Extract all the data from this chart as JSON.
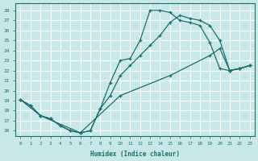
{
  "xlabel": "Humidex (Indice chaleur)",
  "bg_color": "#c8e8e8",
  "grid_color": "#aed4d4",
  "line_color": "#1a6e6e",
  "xlim": [
    -0.5,
    23.5
  ],
  "ylim": [
    15.5,
    28.7
  ],
  "xticks": [
    0,
    1,
    2,
    3,
    4,
    5,
    6,
    7,
    8,
    9,
    10,
    11,
    12,
    13,
    14,
    15,
    16,
    17,
    18,
    19,
    20,
    21,
    22,
    23
  ],
  "yticks": [
    16,
    17,
    18,
    19,
    20,
    21,
    22,
    23,
    24,
    25,
    26,
    27,
    28
  ],
  "curve1_x": [
    0,
    1,
    2,
    3,
    4,
    5,
    6,
    7,
    8,
    9,
    10,
    11,
    12,
    13,
    14,
    15,
    16,
    17,
    18,
    19,
    20,
    21,
    22,
    23
  ],
  "curve1_y": [
    19.1,
    18.5,
    17.5,
    17.2,
    16.5,
    16.0,
    15.8,
    16.0,
    18.2,
    20.8,
    23.0,
    23.2,
    25.0,
    28.0,
    28.0,
    27.8,
    27.0,
    26.8,
    26.5,
    24.8,
    22.2,
    22.0,
    22.2,
    22.5
  ],
  "curve2_x": [
    0,
    1,
    2,
    3,
    4,
    5,
    6,
    7,
    8,
    9,
    10,
    11,
    12,
    13,
    14,
    15,
    16,
    17,
    18,
    19,
    20,
    21,
    22,
    23
  ],
  "curve2_y": [
    19.1,
    18.5,
    17.5,
    17.2,
    16.5,
    16.0,
    15.8,
    16.0,
    18.2,
    19.5,
    21.5,
    22.5,
    23.5,
    24.5,
    25.5,
    26.8,
    27.5,
    27.2,
    27.0,
    26.5,
    25.0,
    22.0,
    22.2,
    22.5
  ],
  "curve3_x": [
    0,
    2,
    6,
    10,
    15,
    19,
    20,
    21,
    22,
    23
  ],
  "curve3_y": [
    19.1,
    17.5,
    15.8,
    19.5,
    21.5,
    23.5,
    24.2,
    22.0,
    22.2,
    22.5
  ]
}
